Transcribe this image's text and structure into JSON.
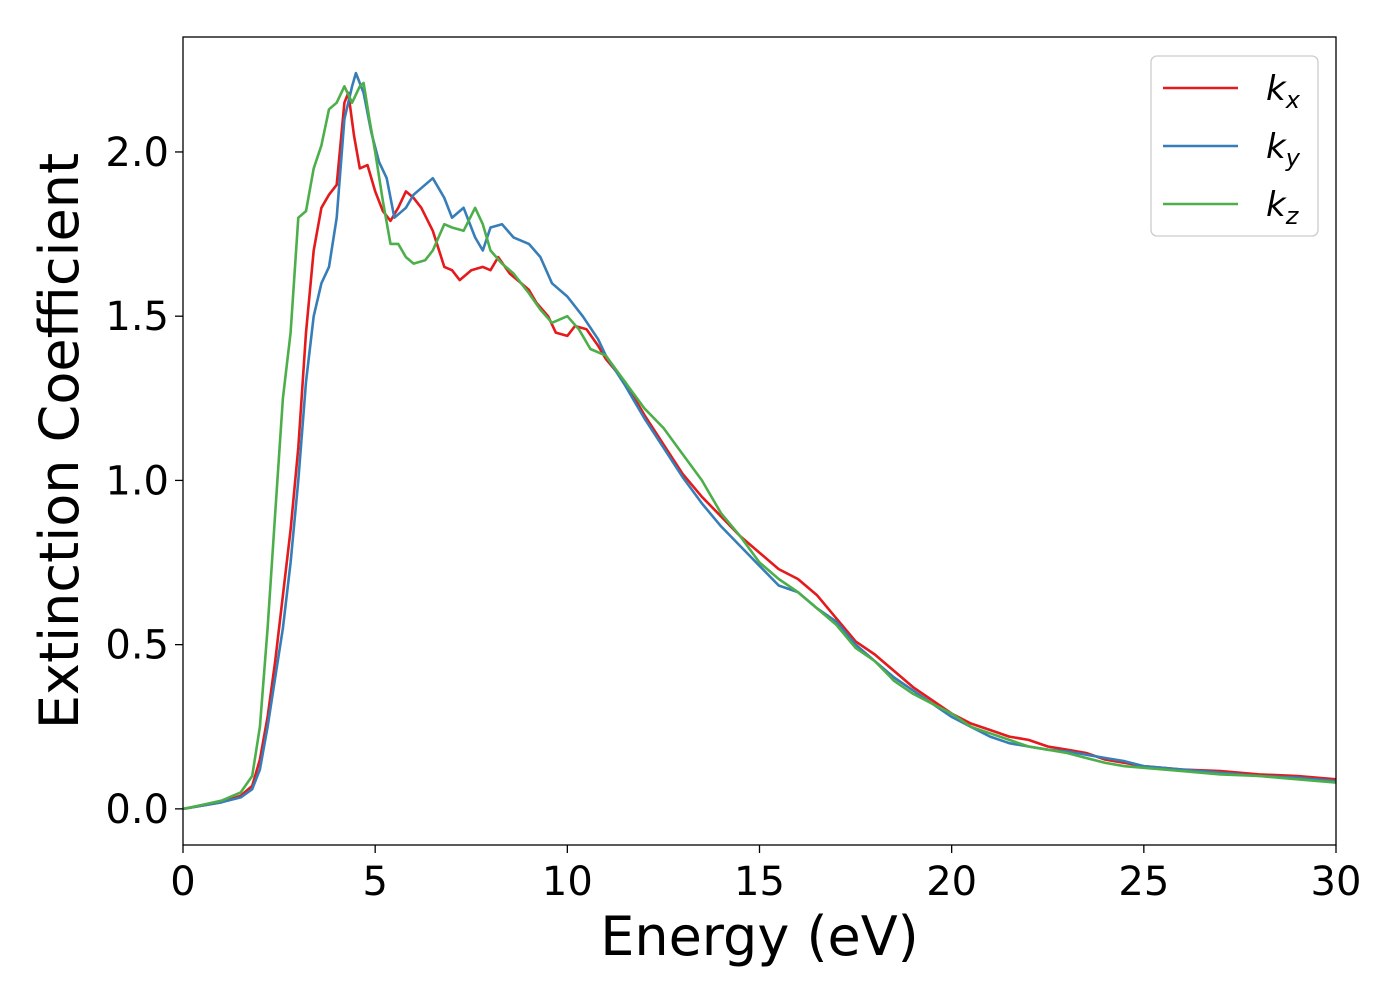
{
  "chart_data": {
    "type": "line",
    "title": "",
    "xlabel": "Energy (eV)",
    "ylabel": "Extinction Coefficient",
    "xlim": [
      0,
      30
    ],
    "ylim": [
      -0.11,
      2.35
    ],
    "grid": false,
    "legend_position": "top-right",
    "x_ticks": [
      0,
      5,
      10,
      15,
      20,
      25,
      30
    ],
    "x_tick_labels": [
      "0",
      "5",
      "10",
      "15",
      "20",
      "25",
      "30"
    ],
    "y_ticks": [
      0.0,
      0.5,
      1.0,
      1.5,
      2.0
    ],
    "y_tick_labels": [
      "0.0",
      "0.5",
      "1.0",
      "1.5",
      "2.0"
    ],
    "series": [
      {
        "name": "kx",
        "legend_base": "k",
        "legend_sub": "x",
        "color": "#e41a1c",
        "points": [
          [
            0,
            0
          ],
          [
            0.5,
            0.01
          ],
          [
            1,
            0.02
          ],
          [
            1.5,
            0.04
          ],
          [
            1.8,
            0.07
          ],
          [
            2.0,
            0.15
          ],
          [
            2.2,
            0.28
          ],
          [
            2.4,
            0.45
          ],
          [
            2.6,
            0.65
          ],
          [
            2.8,
            0.85
          ],
          [
            3.0,
            1.1
          ],
          [
            3.2,
            1.45
          ],
          [
            3.4,
            1.7
          ],
          [
            3.6,
            1.83
          ],
          [
            3.8,
            1.87
          ],
          [
            4.0,
            1.9
          ],
          [
            4.2,
            2.15
          ],
          [
            4.3,
            2.18
          ],
          [
            4.45,
            2.05
          ],
          [
            4.6,
            1.95
          ],
          [
            4.8,
            1.96
          ],
          [
            5.0,
            1.88
          ],
          [
            5.2,
            1.82
          ],
          [
            5.4,
            1.79
          ],
          [
            5.6,
            1.83
          ],
          [
            5.8,
            1.88
          ],
          [
            6.0,
            1.86
          ],
          [
            6.2,
            1.83
          ],
          [
            6.5,
            1.76
          ],
          [
            6.8,
            1.65
          ],
          [
            7.0,
            1.64
          ],
          [
            7.2,
            1.61
          ],
          [
            7.5,
            1.64
          ],
          [
            7.8,
            1.65
          ],
          [
            8.0,
            1.64
          ],
          [
            8.2,
            1.68
          ],
          [
            8.5,
            1.63
          ],
          [
            8.8,
            1.6
          ],
          [
            9.0,
            1.58
          ],
          [
            9.2,
            1.54
          ],
          [
            9.5,
            1.5
          ],
          [
            9.7,
            1.45
          ],
          [
            10.0,
            1.44
          ],
          [
            10.2,
            1.47
          ],
          [
            10.5,
            1.46
          ],
          [
            10.8,
            1.41
          ],
          [
            11.0,
            1.37
          ],
          [
            11.5,
            1.3
          ],
          [
            12.0,
            1.2
          ],
          [
            12.5,
            1.11
          ],
          [
            13.0,
            1.02
          ],
          [
            13.5,
            0.95
          ],
          [
            14.0,
            0.89
          ],
          [
            14.5,
            0.83
          ],
          [
            15.0,
            0.78
          ],
          [
            15.5,
            0.73
          ],
          [
            16.0,
            0.7
          ],
          [
            16.5,
            0.65
          ],
          [
            17.0,
            0.58
          ],
          [
            17.5,
            0.51
          ],
          [
            18.0,
            0.47
          ],
          [
            18.5,
            0.42
          ],
          [
            19.0,
            0.37
          ],
          [
            19.5,
            0.33
          ],
          [
            20.0,
            0.29
          ],
          [
            20.5,
            0.26
          ],
          [
            21.0,
            0.24
          ],
          [
            21.5,
            0.22
          ],
          [
            22.0,
            0.21
          ],
          [
            22.5,
            0.19
          ],
          [
            23.0,
            0.18
          ],
          [
            23.5,
            0.17
          ],
          [
            24.0,
            0.15
          ],
          [
            24.5,
            0.14
          ],
          [
            25.0,
            0.13
          ],
          [
            26.0,
            0.12
          ],
          [
            27.0,
            0.115
          ],
          [
            28.0,
            0.105
          ],
          [
            29.0,
            0.1
          ],
          [
            30.0,
            0.09
          ]
        ]
      },
      {
        "name": "ky",
        "legend_base": "k",
        "legend_sub": "y",
        "color": "#377eb8",
        "points": [
          [
            0,
            0
          ],
          [
            0.5,
            0.01
          ],
          [
            1,
            0.02
          ],
          [
            1.5,
            0.035
          ],
          [
            1.8,
            0.06
          ],
          [
            2.0,
            0.12
          ],
          [
            2.2,
            0.25
          ],
          [
            2.4,
            0.4
          ],
          [
            2.6,
            0.55
          ],
          [
            2.8,
            0.75
          ],
          [
            3.0,
            1.0
          ],
          [
            3.2,
            1.3
          ],
          [
            3.4,
            1.5
          ],
          [
            3.6,
            1.6
          ],
          [
            3.8,
            1.65
          ],
          [
            4.0,
            1.8
          ],
          [
            4.2,
            2.1
          ],
          [
            4.4,
            2.2
          ],
          [
            4.5,
            2.24
          ],
          [
            4.7,
            2.18
          ],
          [
            4.9,
            2.06
          ],
          [
            5.1,
            1.97
          ],
          [
            5.3,
            1.92
          ],
          [
            5.5,
            1.8
          ],
          [
            5.8,
            1.83
          ],
          [
            6.0,
            1.87
          ],
          [
            6.3,
            1.9
          ],
          [
            6.5,
            1.92
          ],
          [
            6.8,
            1.86
          ],
          [
            7.0,
            1.8
          ],
          [
            7.3,
            1.83
          ],
          [
            7.6,
            1.74
          ],
          [
            7.8,
            1.7
          ],
          [
            8.0,
            1.77
          ],
          [
            8.3,
            1.78
          ],
          [
            8.6,
            1.74
          ],
          [
            9.0,
            1.72
          ],
          [
            9.3,
            1.68
          ],
          [
            9.6,
            1.6
          ],
          [
            10.0,
            1.56
          ],
          [
            10.4,
            1.5
          ],
          [
            10.8,
            1.43
          ],
          [
            11.0,
            1.38
          ],
          [
            11.5,
            1.29
          ],
          [
            12.0,
            1.19
          ],
          [
            12.5,
            1.1
          ],
          [
            13.0,
            1.01
          ],
          [
            13.5,
            0.93
          ],
          [
            14.0,
            0.86
          ],
          [
            14.5,
            0.8
          ],
          [
            15.0,
            0.74
          ],
          [
            15.5,
            0.68
          ],
          [
            16.0,
            0.66
          ],
          [
            16.5,
            0.61
          ],
          [
            17.0,
            0.57
          ],
          [
            17.5,
            0.5
          ],
          [
            18.0,
            0.45
          ],
          [
            18.5,
            0.4
          ],
          [
            19.0,
            0.36
          ],
          [
            19.5,
            0.32
          ],
          [
            20.0,
            0.28
          ],
          [
            20.5,
            0.25
          ],
          [
            21.0,
            0.22
          ],
          [
            21.5,
            0.2
          ],
          [
            22.0,
            0.19
          ],
          [
            22.5,
            0.18
          ],
          [
            23.0,
            0.175
          ],
          [
            23.5,
            0.165
          ],
          [
            24.0,
            0.155
          ],
          [
            24.5,
            0.145
          ],
          [
            25.0,
            0.13
          ],
          [
            26.0,
            0.12
          ],
          [
            27.0,
            0.11
          ],
          [
            28.0,
            0.1
          ],
          [
            29.0,
            0.095
          ],
          [
            30.0,
            0.085
          ]
        ]
      },
      {
        "name": "kz",
        "legend_base": "k",
        "legend_sub": "z",
        "color": "#4daf4a",
        "points": [
          [
            0,
            0
          ],
          [
            0.5,
            0.012
          ],
          [
            1,
            0.025
          ],
          [
            1.5,
            0.05
          ],
          [
            1.8,
            0.1
          ],
          [
            2.0,
            0.25
          ],
          [
            2.2,
            0.55
          ],
          [
            2.4,
            0.9
          ],
          [
            2.6,
            1.25
          ],
          [
            2.8,
            1.45
          ],
          [
            3.0,
            1.8
          ],
          [
            3.2,
            1.82
          ],
          [
            3.4,
            1.95
          ],
          [
            3.6,
            2.02
          ],
          [
            3.8,
            2.13
          ],
          [
            4.0,
            2.15
          ],
          [
            4.2,
            2.2
          ],
          [
            4.4,
            2.15
          ],
          [
            4.6,
            2.2
          ],
          [
            4.7,
            2.21
          ],
          [
            4.85,
            2.1
          ],
          [
            5.0,
            2.0
          ],
          [
            5.2,
            1.85
          ],
          [
            5.4,
            1.72
          ],
          [
            5.6,
            1.72
          ],
          [
            5.8,
            1.68
          ],
          [
            6.0,
            1.66
          ],
          [
            6.3,
            1.67
          ],
          [
            6.5,
            1.7
          ],
          [
            6.8,
            1.78
          ],
          [
            7.0,
            1.77
          ],
          [
            7.3,
            1.76
          ],
          [
            7.6,
            1.83
          ],
          [
            7.8,
            1.78
          ],
          [
            8.0,
            1.7
          ],
          [
            8.3,
            1.66
          ],
          [
            8.6,
            1.63
          ],
          [
            9.0,
            1.57
          ],
          [
            9.3,
            1.52
          ],
          [
            9.6,
            1.48
          ],
          [
            10.0,
            1.5
          ],
          [
            10.3,
            1.46
          ],
          [
            10.6,
            1.4
          ],
          [
            11.0,
            1.38
          ],
          [
            11.5,
            1.3
          ],
          [
            12.0,
            1.22
          ],
          [
            12.5,
            1.16
          ],
          [
            13.0,
            1.08
          ],
          [
            13.5,
            1.0
          ],
          [
            14.0,
            0.9
          ],
          [
            14.5,
            0.83
          ],
          [
            15.0,
            0.75
          ],
          [
            15.5,
            0.7
          ],
          [
            16.0,
            0.66
          ],
          [
            16.5,
            0.61
          ],
          [
            17.0,
            0.56
          ],
          [
            17.5,
            0.49
          ],
          [
            18.0,
            0.45
          ],
          [
            18.5,
            0.39
          ],
          [
            19.0,
            0.35
          ],
          [
            19.5,
            0.32
          ],
          [
            20.0,
            0.29
          ],
          [
            20.5,
            0.25
          ],
          [
            21.0,
            0.23
          ],
          [
            21.5,
            0.21
          ],
          [
            22.0,
            0.19
          ],
          [
            22.5,
            0.18
          ],
          [
            23.0,
            0.17
          ],
          [
            23.5,
            0.155
          ],
          [
            24.0,
            0.14
          ],
          [
            24.5,
            0.13
          ],
          [
            25.0,
            0.125
          ],
          [
            26.0,
            0.115
          ],
          [
            27.0,
            0.105
          ],
          [
            28.0,
            0.1
          ],
          [
            29.0,
            0.09
          ],
          [
            30.0,
            0.08
          ]
        ]
      }
    ]
  }
}
